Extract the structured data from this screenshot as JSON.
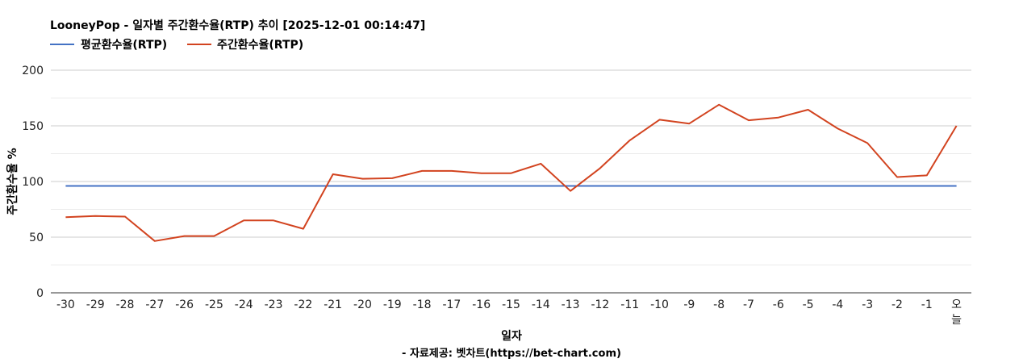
{
  "chart_data": {
    "type": "line",
    "title": "LooneyPop - 일자별 주간환수율(RTP) 추이 [2025-12-01 00:14:47]",
    "xlabel": "일자",
    "ylabel": "주간환수율 %",
    "credit": "- 자료제공: 벳차트(https://bet-chart.com)",
    "categories": [
      "-30",
      "-29",
      "-28",
      "-27",
      "-26",
      "-25",
      "-24",
      "-23",
      "-22",
      "-21",
      "-20",
      "-19",
      "-18",
      "-17",
      "-16",
      "-15",
      "-14",
      "-13",
      "-12",
      "-11",
      "-10",
      "-9",
      "-8",
      "-7",
      "-6",
      "-5",
      "-4",
      "-3",
      "-2",
      "-1",
      "오늘"
    ],
    "ylim": [
      0,
      200
    ],
    "yticks": [
      0,
      50,
      100,
      150,
      200
    ],
    "grid": true,
    "legend_position": "top-left",
    "series": [
      {
        "name": "평균환수율(RTP)",
        "color": "#4472c4",
        "values": [
          96,
          96,
          96,
          96,
          96,
          96,
          96,
          96,
          96,
          96,
          96,
          96,
          96,
          96,
          96,
          96,
          96,
          96,
          96,
          96,
          96,
          96,
          96,
          96,
          96,
          96,
          96,
          96,
          96,
          96,
          96
        ]
      },
      {
        "name": "주간환수율(RTP)",
        "color": "#d2431f",
        "values": [
          68,
          69,
          68.5,
          46.5,
          51,
          51,
          65,
          65,
          57.5,
          106.5,
          102.5,
          103,
          109.5,
          109.5,
          107.5,
          107.5,
          116,
          91.5,
          112,
          137,
          155.5,
          152,
          169,
          155,
          157.5,
          164.5,
          147.5,
          134.5,
          104,
          105.5,
          150
        ]
      }
    ]
  }
}
